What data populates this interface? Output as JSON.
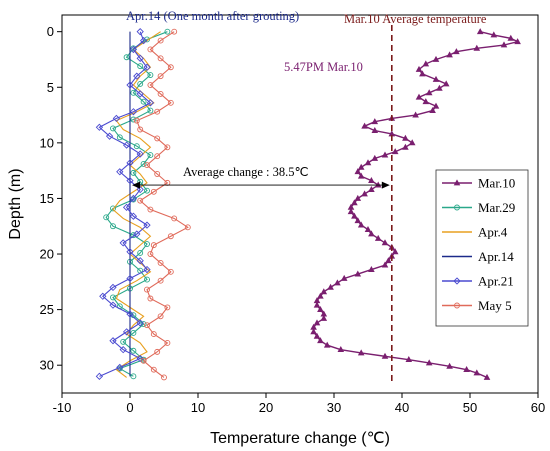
{
  "chart_data": {
    "type": "line",
    "title": "",
    "xlabel": "Temperature change (℃)",
    "ylabel": "Depth (m)",
    "xlim": [
      -10,
      60
    ],
    "ylim": [
      32.5,
      -1.5
    ],
    "xticks": [
      -10,
      0,
      10,
      20,
      30,
      40,
      50,
      60
    ],
    "yticks": [
      0,
      5,
      10,
      15,
      20,
      25,
      30
    ],
    "legend_position": "right",
    "annotations": {
      "apr14_label": "Apr.14 (One month after grouting)",
      "mar10_avg_label": "Mar.10 Average temperature",
      "time_label": "5.47PM Mar.10",
      "avg_change_label": "Average change : 38.5℃",
      "avg_change_value": 38.5
    },
    "series": [
      {
        "name": "Mar.10",
        "color": "#7a1f6f",
        "marker": "triangle",
        "points": [
          [
            51.5,
            0
          ],
          [
            53.5,
            0.3
          ],
          [
            56,
            0.6
          ],
          [
            57,
            0.9
          ],
          [
            55,
            1.2
          ],
          [
            51,
            1.5
          ],
          [
            48,
            1.8
          ],
          [
            47,
            2.1
          ],
          [
            45,
            2.5
          ],
          [
            43.5,
            2.9
          ],
          [
            42.5,
            3.4
          ],
          [
            43,
            3.8
          ],
          [
            45,
            4.3
          ],
          [
            46.5,
            4.7
          ],
          [
            45.5,
            5.1
          ],
          [
            44,
            5.5
          ],
          [
            42.5,
            5.9
          ],
          [
            43.5,
            6.3
          ],
          [
            45,
            6.7
          ],
          [
            44.5,
            7.1
          ],
          [
            42,
            7.5
          ],
          [
            38.5,
            7.8
          ],
          [
            36,
            8.1
          ],
          [
            34.5,
            8.5
          ],
          [
            36,
            8.9
          ],
          [
            38.5,
            9.2
          ],
          [
            40.5,
            9.6
          ],
          [
            41.5,
            10.0
          ],
          [
            40.5,
            10.4
          ],
          [
            39,
            10.8
          ],
          [
            37.5,
            11.1
          ],
          [
            36,
            11.4
          ],
          [
            35,
            11.8
          ],
          [
            34,
            12.2
          ],
          [
            33.5,
            12.6
          ],
          [
            34,
            13.0
          ],
          [
            35.5,
            13.4
          ],
          [
            36.5,
            13.8
          ],
          [
            35.5,
            14.2
          ],
          [
            34.5,
            14.6
          ],
          [
            33.5,
            15.0
          ],
          [
            33,
            15.4
          ],
          [
            32.5,
            15.8
          ],
          [
            32.5,
            16.2
          ],
          [
            33,
            16.6
          ],
          [
            33.5,
            17.0
          ],
          [
            34,
            17.4
          ],
          [
            35,
            17.8
          ],
          [
            35.5,
            18.2
          ],
          [
            36.5,
            18.6
          ],
          [
            37.5,
            19.0
          ],
          [
            38.5,
            19.4
          ],
          [
            39,
            19.8
          ],
          [
            38.5,
            20.2
          ],
          [
            38,
            20.6
          ],
          [
            37.5,
            21.0
          ],
          [
            35.5,
            21.4
          ],
          [
            33.5,
            21.8
          ],
          [
            31.5,
            22.2
          ],
          [
            30.5,
            22.6
          ],
          [
            29.5,
            23.0
          ],
          [
            28.5,
            23.4
          ],
          [
            28,
            23.8
          ],
          [
            27.5,
            24.2
          ],
          [
            27.5,
            24.6
          ],
          [
            28,
            25.0
          ],
          [
            28.5,
            25.4
          ],
          [
            28.5,
            25.8
          ],
          [
            27.5,
            26.2
          ],
          [
            27,
            26.6
          ],
          [
            27,
            27.0
          ],
          [
            27.5,
            27.4
          ],
          [
            28,
            27.8
          ],
          [
            29,
            28.2
          ],
          [
            31,
            28.6
          ],
          [
            34,
            28.9
          ],
          [
            37.5,
            29.2
          ],
          [
            41,
            29.5
          ],
          [
            44,
            29.8
          ],
          [
            47,
            30.1
          ],
          [
            49.5,
            30.4
          ],
          [
            51,
            30.7
          ],
          [
            52.5,
            31.1
          ]
        ]
      },
      {
        "name": "Mar.29",
        "color": "#2aa88a",
        "marker": "circle",
        "points": [
          [
            5.5,
            0
          ],
          [
            2.5,
            0.7
          ],
          [
            0.5,
            1.5
          ],
          [
            -0.5,
            2.3
          ],
          [
            1.5,
            3.1
          ],
          [
            3,
            3.9
          ],
          [
            1.5,
            4.7
          ],
          [
            0.5,
            5.5
          ],
          [
            2,
            6.3
          ],
          [
            3,
            7.1
          ],
          [
            0.5,
            7.9
          ],
          [
            -2.5,
            8.7
          ],
          [
            -1.5,
            9.5
          ],
          [
            1,
            10.3
          ],
          [
            3,
            11.1
          ],
          [
            2,
            11.9
          ],
          [
            0.5,
            12.7
          ],
          [
            1.5,
            13.5
          ],
          [
            2.5,
            14.3
          ],
          [
            0.5,
            15.1
          ],
          [
            -2.5,
            15.9
          ],
          [
            -3.5,
            16.7
          ],
          [
            -2.5,
            17.5
          ],
          [
            0.5,
            18.3
          ],
          [
            2.5,
            19.1
          ],
          [
            1.5,
            19.9
          ],
          [
            0,
            20.7
          ],
          [
            1.5,
            21.5
          ],
          [
            2.5,
            22.3
          ],
          [
            0,
            23.1
          ],
          [
            -2.5,
            23.9
          ],
          [
            -1.5,
            24.7
          ],
          [
            0.5,
            25.5
          ],
          [
            2,
            26.3
          ],
          [
            0.5,
            27.1
          ],
          [
            -1,
            27.9
          ],
          [
            0.5,
            28.7
          ],
          [
            2,
            29.5
          ],
          [
            -1.5,
            30.3
          ],
          [
            0.5,
            31.0
          ]
        ]
      },
      {
        "name": "Apr.4",
        "color": "#e8a020",
        "marker": "none",
        "points": [
          [
            4.5,
            0
          ],
          [
            2.5,
            0.8
          ],
          [
            0.5,
            1.6
          ],
          [
            2,
            2.4
          ],
          [
            3,
            3.2
          ],
          [
            1.5,
            4.0
          ],
          [
            0.5,
            4.8
          ],
          [
            2,
            5.6
          ],
          [
            3.5,
            6.4
          ],
          [
            1,
            7.2
          ],
          [
            -2,
            8.0
          ],
          [
            -1,
            8.8
          ],
          [
            1.5,
            9.6
          ],
          [
            3,
            10.4
          ],
          [
            1.5,
            11.2
          ],
          [
            0,
            12.0
          ],
          [
            1.5,
            12.8
          ],
          [
            2.5,
            13.6
          ],
          [
            0.5,
            14.4
          ],
          [
            -1.5,
            15.2
          ],
          [
            -2.5,
            16.0
          ],
          [
            -1,
            16.8
          ],
          [
            1.5,
            17.6
          ],
          [
            3,
            18.4
          ],
          [
            1.5,
            19.2
          ],
          [
            0,
            20.0
          ],
          [
            1.5,
            20.8
          ],
          [
            3,
            21.6
          ],
          [
            1,
            22.4
          ],
          [
            -1.5,
            23.2
          ],
          [
            -2,
            24.0
          ],
          [
            0,
            24.8
          ],
          [
            2,
            25.6
          ],
          [
            0.5,
            26.4
          ],
          [
            -0.5,
            27.2
          ],
          [
            1.5,
            28.0
          ],
          [
            2.5,
            28.8
          ],
          [
            0,
            29.6
          ],
          [
            -2,
            30.4
          ],
          [
            -0.5,
            31.1
          ]
        ]
      },
      {
        "name": "Apr.14",
        "color": "#1c2a8a",
        "marker": "none",
        "points": [
          [
            0,
            0
          ],
          [
            0,
            31.0
          ]
        ]
      },
      {
        "name": "Apr.21",
        "color": "#4a4ad0",
        "marker": "diamond",
        "points": [
          [
            1.5,
            0
          ],
          [
            2,
            0.8
          ],
          [
            0.5,
            1.6
          ],
          [
            1.5,
            2.4
          ],
          [
            2.5,
            3.2
          ],
          [
            1,
            4.0
          ],
          [
            0,
            4.8
          ],
          [
            1.5,
            5.6
          ],
          [
            3,
            6.4
          ],
          [
            0.5,
            7.2
          ],
          [
            -2,
            7.8
          ],
          [
            -4.5,
            8.6
          ],
          [
            -3,
            9.4
          ],
          [
            -0.5,
            10.2
          ],
          [
            1.5,
            11.0
          ],
          [
            0,
            11.8
          ],
          [
            -1.5,
            12.6
          ],
          [
            0,
            13.4
          ],
          [
            1.5,
            14.2
          ],
          [
            0.5,
            15.0
          ],
          [
            -0.5,
            15.8
          ],
          [
            0.5,
            16.6
          ],
          [
            2.5,
            17.4
          ],
          [
            1,
            18.2
          ],
          [
            -1,
            19.0
          ],
          [
            0,
            19.8
          ],
          [
            1.5,
            20.6
          ],
          [
            2.5,
            21.4
          ],
          [
            0,
            22.2
          ],
          [
            -2.5,
            23.0
          ],
          [
            -4,
            23.8
          ],
          [
            -2.5,
            24.6
          ],
          [
            0,
            25.4
          ],
          [
            1.5,
            26.2
          ],
          [
            -0.5,
            27.0
          ],
          [
            -2.5,
            27.8
          ],
          [
            -1,
            28.6
          ],
          [
            1.5,
            29.4
          ],
          [
            -1.5,
            30.2
          ],
          [
            -4.5,
            31.0
          ]
        ]
      },
      {
        "name": "May 5",
        "color": "#e06a5a",
        "marker": "circle",
        "points": [
          [
            6.5,
            0
          ],
          [
            4.5,
            0.8
          ],
          [
            3,
            1.6
          ],
          [
            4.5,
            2.4
          ],
          [
            6,
            3.2
          ],
          [
            4.5,
            4.0
          ],
          [
            3,
            4.8
          ],
          [
            4.5,
            5.6
          ],
          [
            6,
            6.4
          ],
          [
            4,
            7.2
          ],
          [
            1,
            8.0
          ],
          [
            1.5,
            8.8
          ],
          [
            4,
            9.6
          ],
          [
            5.5,
            10.4
          ],
          [
            4,
            11.2
          ],
          [
            2.5,
            12.0
          ],
          [
            4,
            12.8
          ],
          [
            5.5,
            13.6
          ],
          [
            3.5,
            14.4
          ],
          [
            1.5,
            15.2
          ],
          [
            3,
            16.0
          ],
          [
            6.5,
            16.8
          ],
          [
            8.5,
            17.6
          ],
          [
            6,
            18.4
          ],
          [
            3.5,
            19.2
          ],
          [
            3,
            20.0
          ],
          [
            4.5,
            20.8
          ],
          [
            6,
            21.6
          ],
          [
            4.5,
            22.4
          ],
          [
            2.5,
            23.2
          ],
          [
            3,
            24.0
          ],
          [
            5.5,
            24.8
          ],
          [
            4.5,
            25.6
          ],
          [
            2.5,
            26.4
          ],
          [
            3.5,
            27.2
          ],
          [
            5.5,
            28.0
          ],
          [
            4,
            28.8
          ],
          [
            2,
            29.6
          ],
          [
            3.5,
            30.4
          ],
          [
            5,
            31.1
          ]
        ]
      }
    ]
  }
}
